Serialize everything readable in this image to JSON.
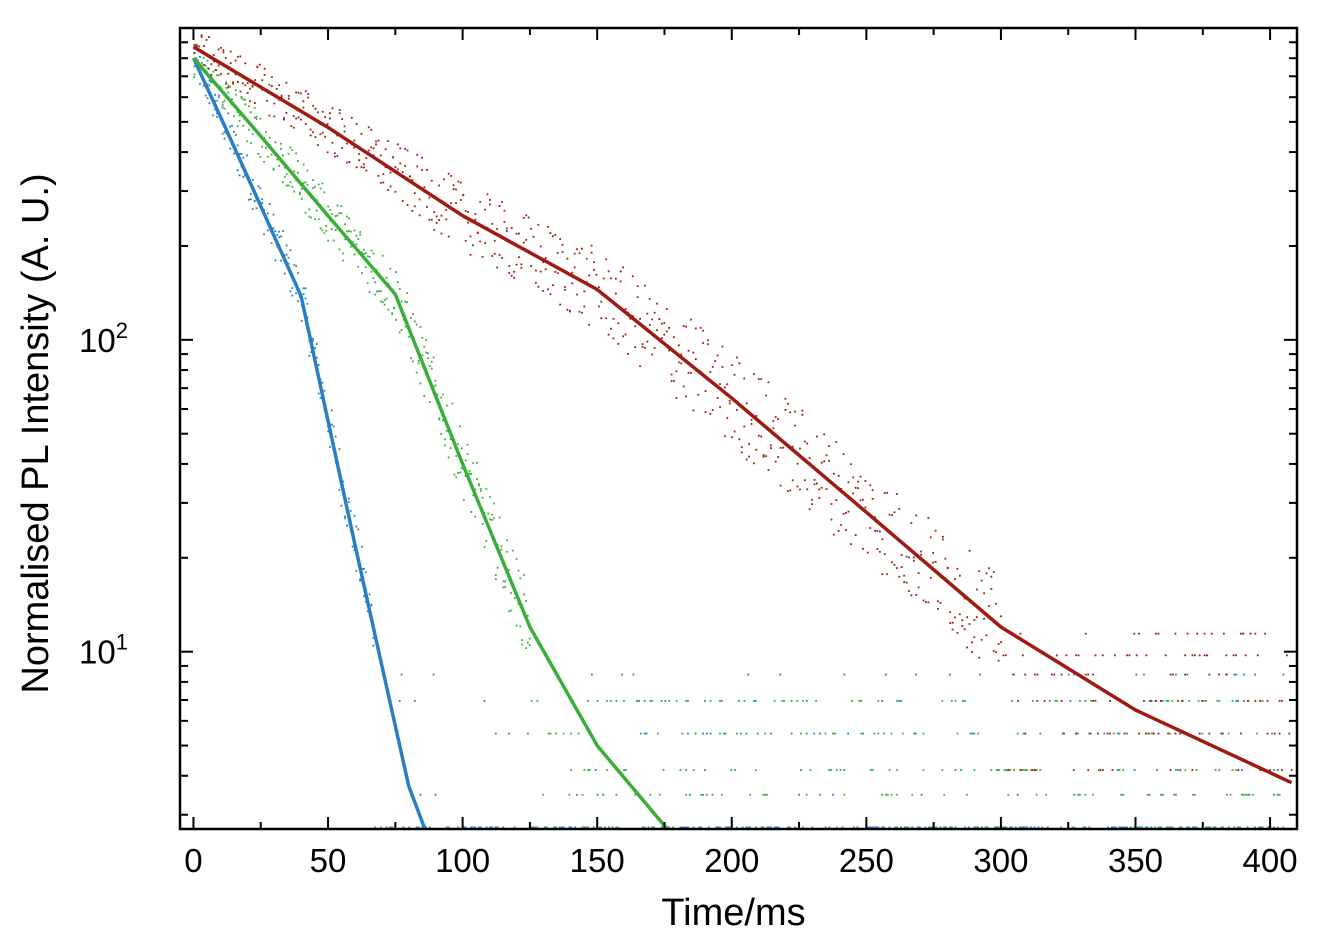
{
  "chart_data": {
    "type": "line",
    "xlabel": "Time/ms",
    "ylabel": "Normalised PL Intensity (A. U.)",
    "y_scale": "log",
    "xlim": [
      -5,
      410
    ],
    "ylim": [
      2.7,
      1000
    ],
    "x_ticks": [
      0,
      50,
      100,
      150,
      200,
      250,
      300,
      350,
      400
    ],
    "x_tick_labels": [
      "0",
      "50",
      "100",
      "150",
      "200",
      "250",
      "300",
      "350",
      "400"
    ],
    "y_tick_labels": [
      {
        "base": "10",
        "exp": "1",
        "value": 10
      },
      {
        "base": "10",
        "exp": "2",
        "value": 100
      }
    ],
    "grid": false,
    "legend": "none",
    "series": [
      {
        "color": "#2a7fc4",
        "x": [
          0,
          10,
          20,
          30,
          40,
          50,
          60,
          70,
          80,
          86
        ],
        "y": [
          800,
          520,
          335,
          215,
          138,
          55,
          22,
          9.0,
          3.7,
          2.7
        ]
      },
      {
        "color": "#3aae3a",
        "x": [
          0,
          25,
          50,
          75,
          100,
          125,
          150,
          176
        ],
        "y": [
          800,
          450,
          250,
          140,
          40,
          12,
          5.0,
          2.7
        ]
      },
      {
        "color": "#a01a12",
        "x": [
          0,
          50,
          100,
          150,
          200,
          250,
          300,
          350,
          408
        ],
        "y": [
          870,
          480,
          250,
          145,
          65,
          28,
          12,
          6.5,
          3.8
        ]
      }
    ]
  }
}
